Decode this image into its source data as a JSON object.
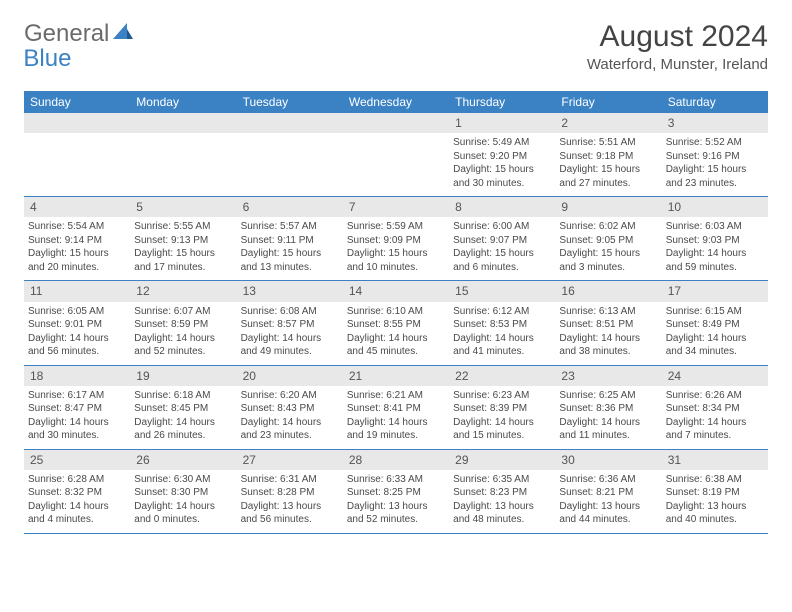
{
  "logo": {
    "text1": "General",
    "text2": "Blue"
  },
  "title": "August 2024",
  "location": "Waterford, Munster, Ireland",
  "weekdays": [
    "Sunday",
    "Monday",
    "Tuesday",
    "Wednesday",
    "Thursday",
    "Friday",
    "Saturday"
  ],
  "colors": {
    "header_bg": "#3b82c4",
    "header_text": "#ffffff",
    "daynum_bg": "#e8e8e8",
    "border": "#3b82c4",
    "body_text": "#4a4a4a"
  },
  "weeks": [
    [
      null,
      null,
      null,
      null,
      {
        "n": "1",
        "sunrise": "5:49 AM",
        "sunset": "9:20 PM",
        "dh": "15",
        "dm": "30"
      },
      {
        "n": "2",
        "sunrise": "5:51 AM",
        "sunset": "9:18 PM",
        "dh": "15",
        "dm": "27"
      },
      {
        "n": "3",
        "sunrise": "5:52 AM",
        "sunset": "9:16 PM",
        "dh": "15",
        "dm": "23"
      }
    ],
    [
      {
        "n": "4",
        "sunrise": "5:54 AM",
        "sunset": "9:14 PM",
        "dh": "15",
        "dm": "20"
      },
      {
        "n": "5",
        "sunrise": "5:55 AM",
        "sunset": "9:13 PM",
        "dh": "15",
        "dm": "17"
      },
      {
        "n": "6",
        "sunrise": "5:57 AM",
        "sunset": "9:11 PM",
        "dh": "15",
        "dm": "13"
      },
      {
        "n": "7",
        "sunrise": "5:59 AM",
        "sunset": "9:09 PM",
        "dh": "15",
        "dm": "10"
      },
      {
        "n": "8",
        "sunrise": "6:00 AM",
        "sunset": "9:07 PM",
        "dh": "15",
        "dm": "6"
      },
      {
        "n": "9",
        "sunrise": "6:02 AM",
        "sunset": "9:05 PM",
        "dh": "15",
        "dm": "3"
      },
      {
        "n": "10",
        "sunrise": "6:03 AM",
        "sunset": "9:03 PM",
        "dh": "14",
        "dm": "59"
      }
    ],
    [
      {
        "n": "11",
        "sunrise": "6:05 AM",
        "sunset": "9:01 PM",
        "dh": "14",
        "dm": "56"
      },
      {
        "n": "12",
        "sunrise": "6:07 AM",
        "sunset": "8:59 PM",
        "dh": "14",
        "dm": "52"
      },
      {
        "n": "13",
        "sunrise": "6:08 AM",
        "sunset": "8:57 PM",
        "dh": "14",
        "dm": "49"
      },
      {
        "n": "14",
        "sunrise": "6:10 AM",
        "sunset": "8:55 PM",
        "dh": "14",
        "dm": "45"
      },
      {
        "n": "15",
        "sunrise": "6:12 AM",
        "sunset": "8:53 PM",
        "dh": "14",
        "dm": "41"
      },
      {
        "n": "16",
        "sunrise": "6:13 AM",
        "sunset": "8:51 PM",
        "dh": "14",
        "dm": "38"
      },
      {
        "n": "17",
        "sunrise": "6:15 AM",
        "sunset": "8:49 PM",
        "dh": "14",
        "dm": "34"
      }
    ],
    [
      {
        "n": "18",
        "sunrise": "6:17 AM",
        "sunset": "8:47 PM",
        "dh": "14",
        "dm": "30"
      },
      {
        "n": "19",
        "sunrise": "6:18 AM",
        "sunset": "8:45 PM",
        "dh": "14",
        "dm": "26"
      },
      {
        "n": "20",
        "sunrise": "6:20 AM",
        "sunset": "8:43 PM",
        "dh": "14",
        "dm": "23"
      },
      {
        "n": "21",
        "sunrise": "6:21 AM",
        "sunset": "8:41 PM",
        "dh": "14",
        "dm": "19"
      },
      {
        "n": "22",
        "sunrise": "6:23 AM",
        "sunset": "8:39 PM",
        "dh": "14",
        "dm": "15"
      },
      {
        "n": "23",
        "sunrise": "6:25 AM",
        "sunset": "8:36 PM",
        "dh": "14",
        "dm": "11"
      },
      {
        "n": "24",
        "sunrise": "6:26 AM",
        "sunset": "8:34 PM",
        "dh": "14",
        "dm": "7"
      }
    ],
    [
      {
        "n": "25",
        "sunrise": "6:28 AM",
        "sunset": "8:32 PM",
        "dh": "14",
        "dm": "4"
      },
      {
        "n": "26",
        "sunrise": "6:30 AM",
        "sunset": "8:30 PM",
        "dh": "14",
        "dm": "0"
      },
      {
        "n": "27",
        "sunrise": "6:31 AM",
        "sunset": "8:28 PM",
        "dh": "13",
        "dm": "56"
      },
      {
        "n": "28",
        "sunrise": "6:33 AM",
        "sunset": "8:25 PM",
        "dh": "13",
        "dm": "52"
      },
      {
        "n": "29",
        "sunrise": "6:35 AM",
        "sunset": "8:23 PM",
        "dh": "13",
        "dm": "48"
      },
      {
        "n": "30",
        "sunrise": "6:36 AM",
        "sunset": "8:21 PM",
        "dh": "13",
        "dm": "44"
      },
      {
        "n": "31",
        "sunrise": "6:38 AM",
        "sunset": "8:19 PM",
        "dh": "13",
        "dm": "40"
      }
    ]
  ]
}
